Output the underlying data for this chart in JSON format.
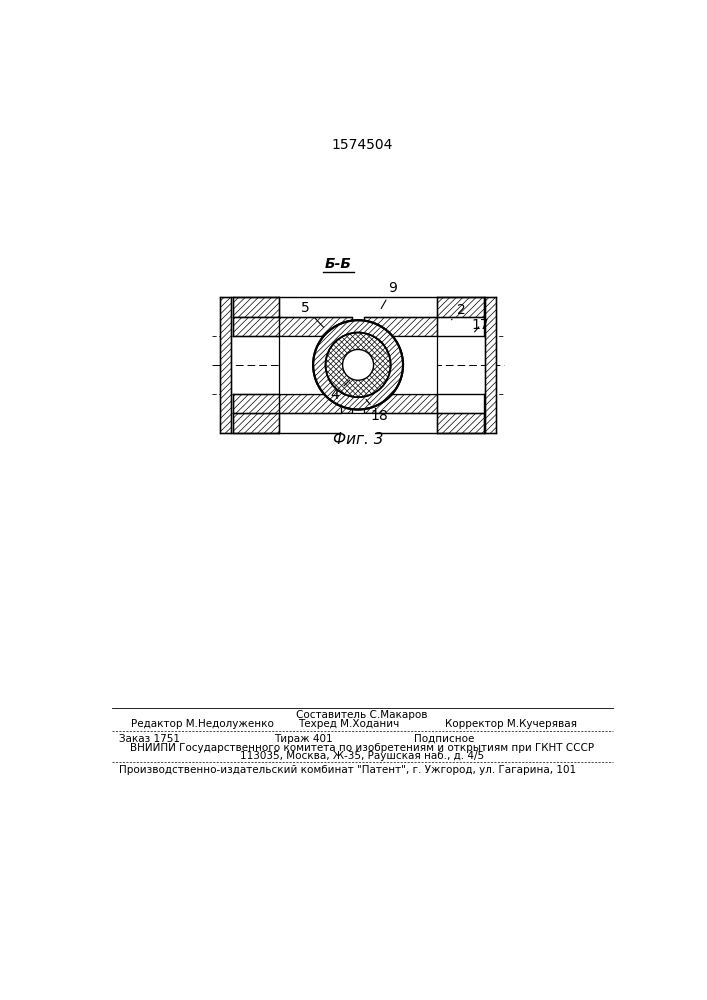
{
  "patent_number": "1574504",
  "fig_label": "Фиг. 3",
  "section_label": "Б-Б",
  "bg_color": "#ffffff",
  "line_color": "#000000",
  "footer_line0": "Составитель С.Макаров",
  "footer_line1_left": "Редактор М.Недолуженко",
  "footer_line1_center": "Техред М.Ходанич",
  "footer_line1_right": "Корректор М.Кучерявая",
  "footer_line2_1": "Заказ 1751",
  "footer_line2_2": "Тираж 401",
  "footer_line2_3": "Подписное",
  "footer_line3": "ВНИИПИ Государственного комитета по изобретениям и открытиям при ГКНТ СССР",
  "footer_line4": "113035, Москва, Ж-35, Раушская наб., д. 4/5",
  "footer_line5": "Производственно-издательский комбинат \"Патент\", г. Ужгород, ул. Гагарина, 101"
}
